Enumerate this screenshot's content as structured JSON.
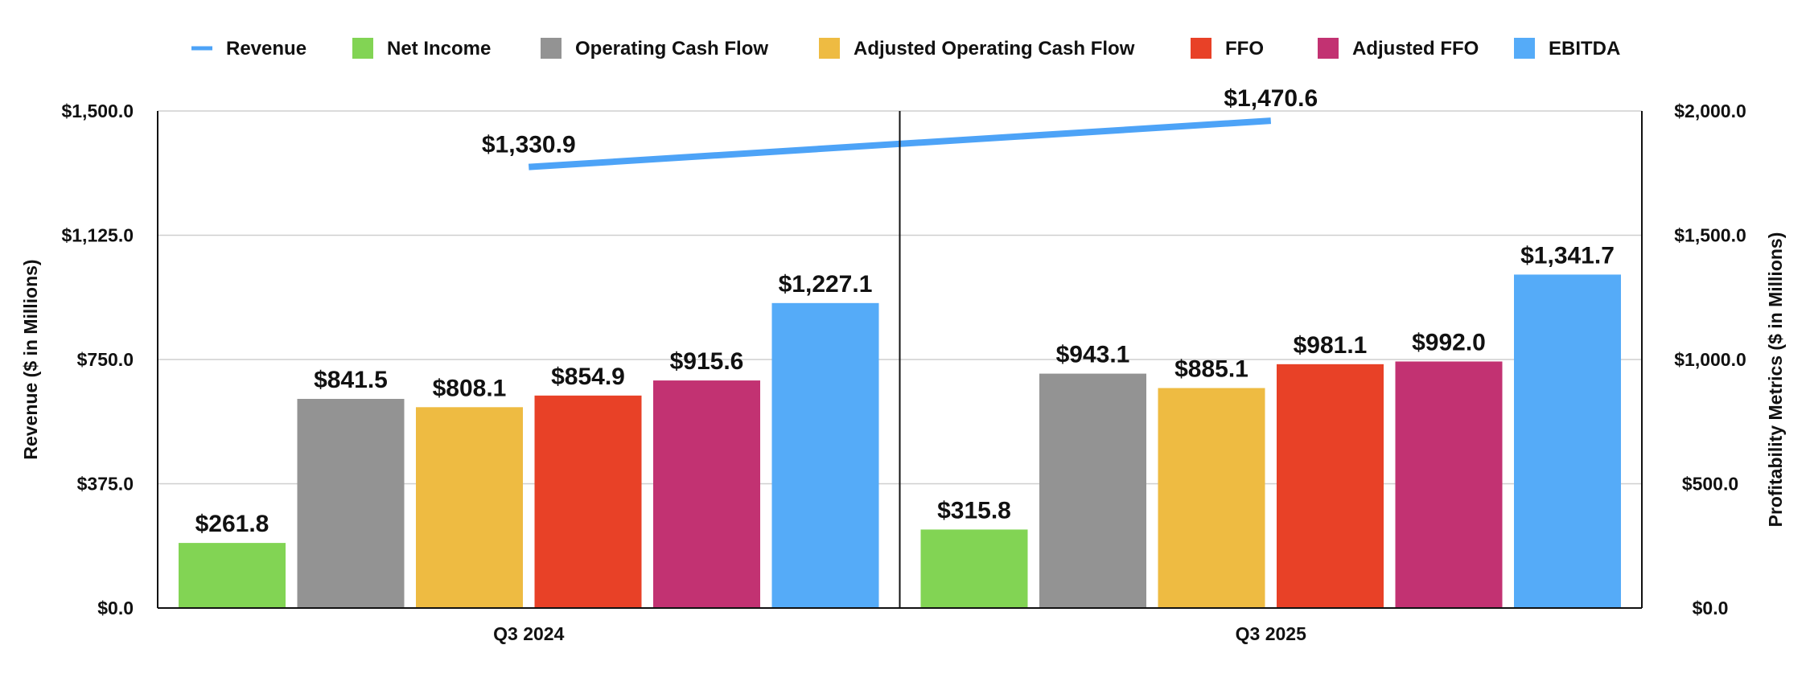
{
  "chart_data": {
    "type": "bar",
    "categories": [
      "Q3 2024",
      "Q3 2025"
    ],
    "left_axis": {
      "label": "Revenue ($ in Millions)",
      "ylim": [
        0,
        1500
      ],
      "ticks": [
        "$0.0",
        "$375.0",
        "$750.0",
        "$1,125.0",
        "$1,500.0"
      ],
      "tick_values": [
        0,
        375,
        750,
        1125,
        1500
      ]
    },
    "right_axis": {
      "label": "Profitability Metrics ($ in Millions)",
      "ylim": [
        0,
        2000
      ],
      "ticks": [
        "$0.0",
        "$500.0",
        "$1,000.0",
        "$1,500.0",
        "$2,000.0"
      ],
      "tick_values": [
        0,
        500,
        1000,
        1500,
        2000
      ]
    },
    "line_series": {
      "name": "Revenue",
      "axis": "left",
      "color": "#4DA3F7",
      "values": [
        1330.9,
        1470.6
      ],
      "labels": [
        "$1,330.9",
        "$1,470.6"
      ]
    },
    "series": [
      {
        "name": "Net Income",
        "axis": "right",
        "color": "#82D454",
        "values": [
          261.8,
          315.8
        ],
        "labels": [
          "$261.8",
          "$315.8"
        ]
      },
      {
        "name": "Operating Cash Flow",
        "axis": "right",
        "color": "#939393",
        "values": [
          841.5,
          943.1
        ],
        "labels": [
          "$841.5",
          "$943.1"
        ]
      },
      {
        "name": "Adjusted Operating Cash Flow",
        "axis": "right",
        "color": "#EEBB42",
        "values": [
          808.1,
          885.1
        ],
        "labels": [
          "$808.1",
          "$885.1"
        ]
      },
      {
        "name": "FFO",
        "axis": "right",
        "color": "#E84127",
        "values": [
          854.9,
          981.1
        ],
        "labels": [
          "$854.9",
          "$981.1"
        ]
      },
      {
        "name": "Adjusted FFO",
        "axis": "right",
        "color": "#C23272",
        "values": [
          915.6,
          992.0
        ],
        "labels": [
          "$915.6",
          "$992.0"
        ]
      },
      {
        "name": "EBITDA",
        "axis": "right",
        "color": "#55ABF8",
        "values": [
          1227.1,
          1341.7
        ],
        "labels": [
          "$1,227.1",
          "$1,341.7"
        ]
      }
    ],
    "legend_position": "top",
    "grid": true
  }
}
